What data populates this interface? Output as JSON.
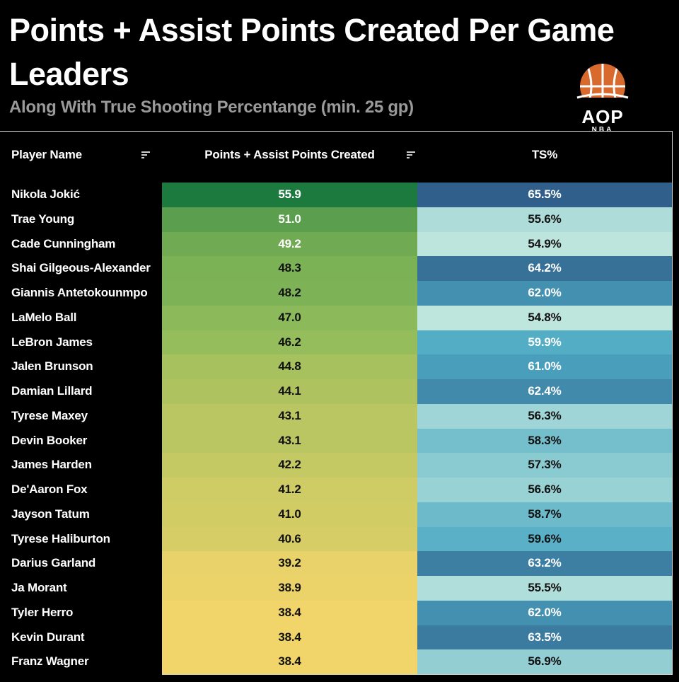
{
  "header": {
    "title": "Points + Assist Points Created Per Game Leaders",
    "subtitle": "Along With True Shooting Percentange (min. 25 gp)"
  },
  "logo": {
    "main_text": "AOP",
    "sub_text": "NBA",
    "icon": "basketball-icon"
  },
  "colors": {
    "background": "#000000",
    "pts_high": "#1d7a3e",
    "pts_low": "#f1d46a",
    "ts_high": "#2f5f8a",
    "ts_low": "#bfe6dd"
  },
  "chart_data": {
    "type": "table",
    "columns": [
      "Player Name",
      "Points + Assist Points Created",
      "TS%"
    ],
    "sort_icon": "sort-icon",
    "rows": [
      {
        "player": "Nikola Jokić",
        "pts_created": "55.9",
        "ts": "65.5%"
      },
      {
        "player": "Trae Young",
        "pts_created": "51.0",
        "ts": "55.6%"
      },
      {
        "player": "Cade Cunningham",
        "pts_created": "49.2",
        "ts": "54.9%"
      },
      {
        "player": "Shai Gilgeous-Alexander",
        "pts_created": "48.3",
        "ts": "64.2%"
      },
      {
        "player": "Giannis Antetokounmpo",
        "pts_created": "48.2",
        "ts": "62.0%"
      },
      {
        "player": "LaMelo Ball",
        "pts_created": "47.0",
        "ts": "54.8%"
      },
      {
        "player": "LeBron James",
        "pts_created": "46.2",
        "ts": "59.9%"
      },
      {
        "player": "Jalen Brunson",
        "pts_created": "44.8",
        "ts": "61.0%"
      },
      {
        "player": "Damian Lillard",
        "pts_created": "44.1",
        "ts": "62.4%"
      },
      {
        "player": "Tyrese Maxey",
        "pts_created": "43.1",
        "ts": "56.3%"
      },
      {
        "player": "Devin Booker",
        "pts_created": "43.1",
        "ts": "58.3%"
      },
      {
        "player": "James Harden",
        "pts_created": "42.2",
        "ts": "57.3%"
      },
      {
        "player": "De'Aaron Fox",
        "pts_created": "41.2",
        "ts": "56.6%"
      },
      {
        "player": "Jayson Tatum",
        "pts_created": "41.0",
        "ts": "58.7%"
      },
      {
        "player": "Tyrese Haliburton",
        "pts_created": "40.6",
        "ts": "59.6%"
      },
      {
        "player": "Darius Garland",
        "pts_created": "39.2",
        "ts": "63.2%"
      },
      {
        "player": "Ja Morant",
        "pts_created": "38.9",
        "ts": "55.5%"
      },
      {
        "player": "Tyler Herro",
        "pts_created": "38.4",
        "ts": "62.0%"
      },
      {
        "player": "Kevin Durant",
        "pts_created": "38.4",
        "ts": "63.5%"
      },
      {
        "player": "Franz Wagner",
        "pts_created": "38.4",
        "ts": "56.9%"
      }
    ]
  }
}
